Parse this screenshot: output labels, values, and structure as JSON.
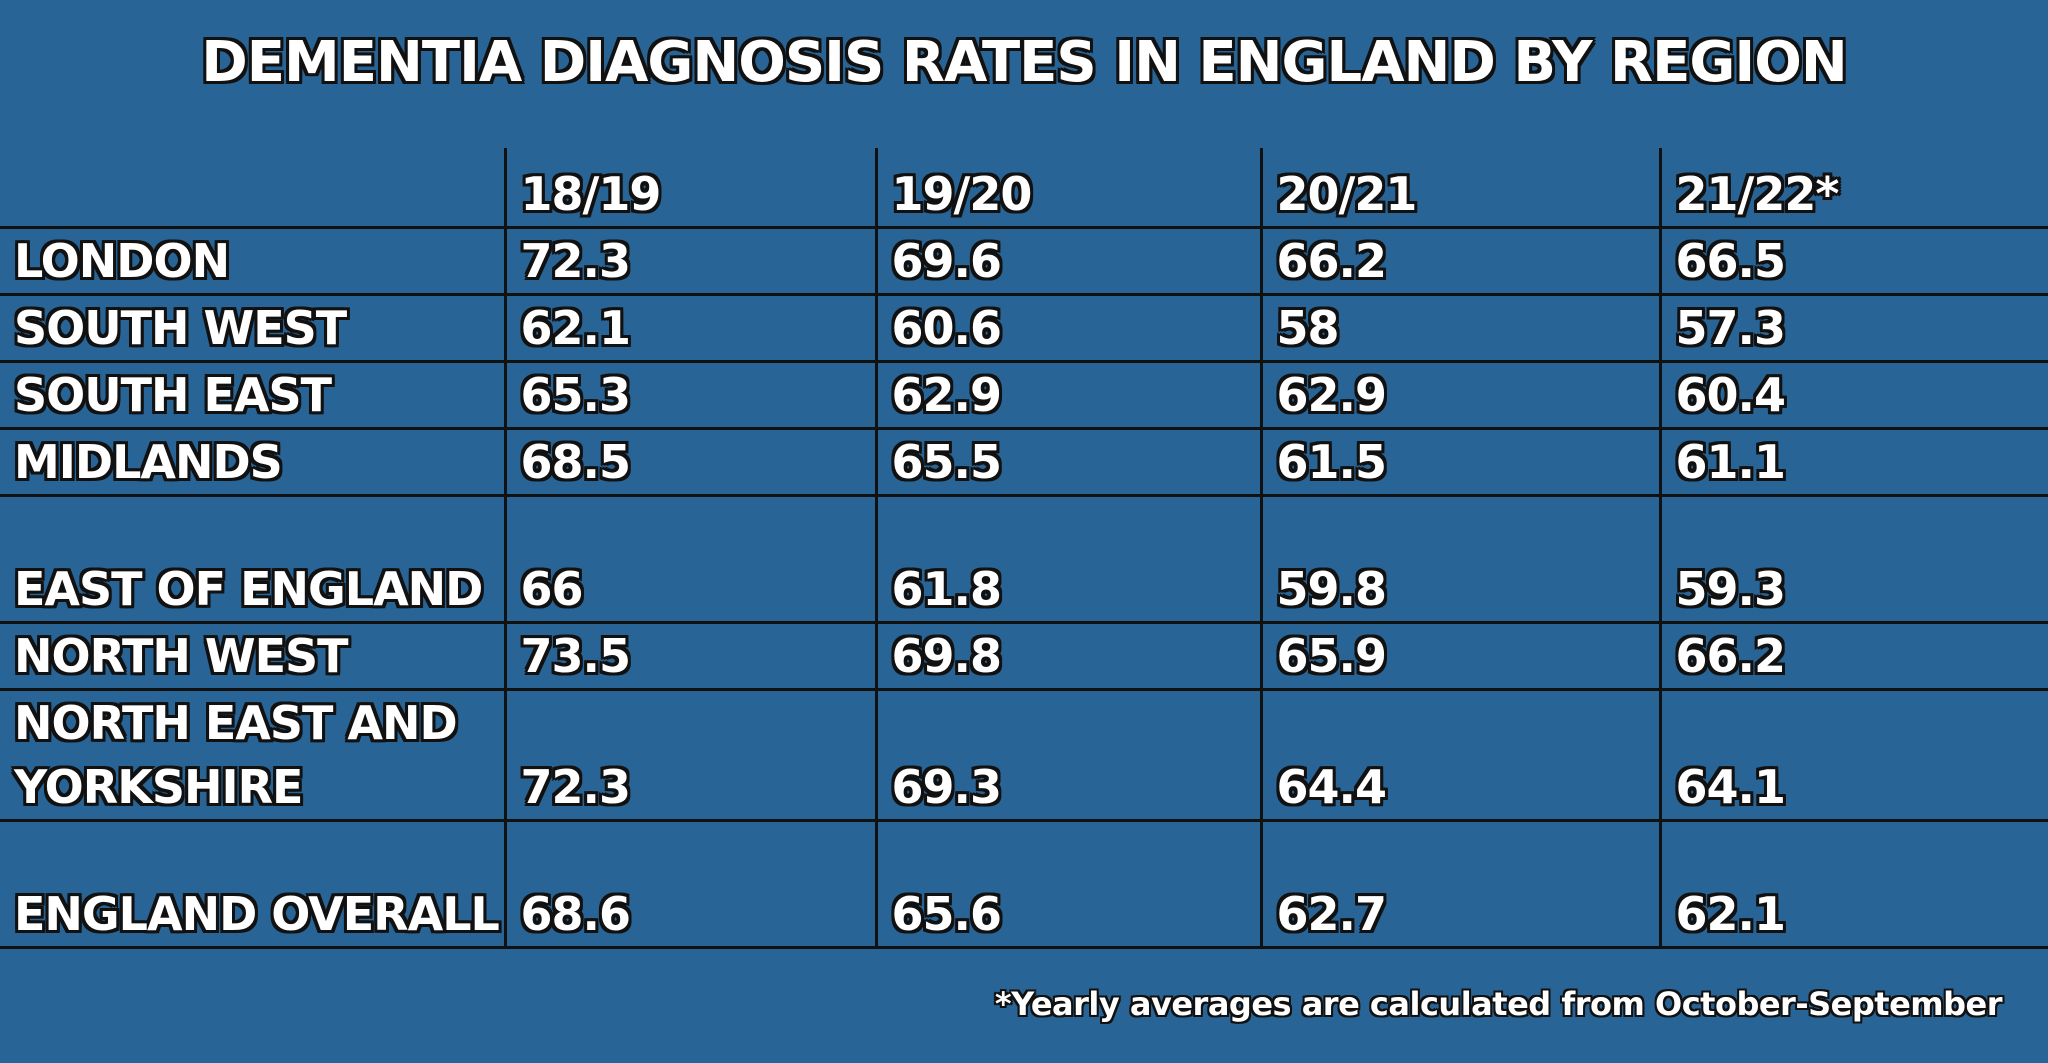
{
  "chart_data": {
    "type": "table",
    "title": "DEMENTIA DIAGNOSIS RATES IN ENGLAND BY REGION",
    "columns": [
      "",
      "18/19",
      "19/20",
      "20/21",
      "21/22*"
    ],
    "rows": [
      {
        "region": "LONDON",
        "values": [
          "72.3",
          "69.6",
          "66.2",
          "66.5"
        ]
      },
      {
        "region": "SOUTH WEST",
        "values": [
          "62.1",
          "60.6",
          "58",
          "57.3"
        ]
      },
      {
        "region": "SOUTH EAST",
        "values": [
          "65.3",
          "62.9",
          "62.9",
          "60.4"
        ]
      },
      {
        "region": "MIDLANDS",
        "values": [
          "68.5",
          "65.5",
          "61.5",
          "61.1"
        ]
      },
      {
        "region": "EAST OF ENGLAND",
        "values": [
          "66",
          "61.8",
          "59.8",
          "59.3"
        ]
      },
      {
        "region": "NORTH WEST",
        "values": [
          "73.5",
          "69.8",
          "65.9",
          "66.2"
        ]
      },
      {
        "region": "NORTH EAST AND YORKSHIRE",
        "values": [
          "72.3",
          "69.3",
          "64.4",
          "64.1"
        ]
      },
      {
        "region": "ENGLAND OVERALL",
        "values": [
          "68.6",
          "65.6",
          "62.7",
          "62.1"
        ]
      }
    ],
    "footnote": "*Yearly averages are calculated from October-September"
  },
  "colors": {
    "background": "#286496",
    "text": "#ffffff",
    "outline": "#111111"
  }
}
